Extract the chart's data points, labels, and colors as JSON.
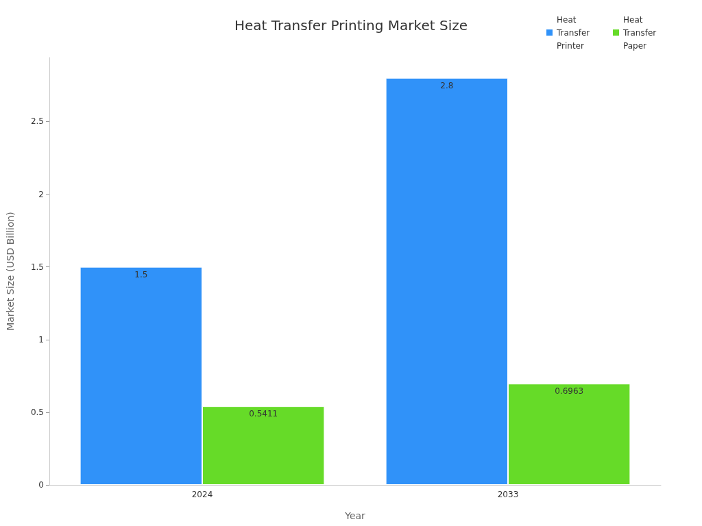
{
  "chart_data": {
    "type": "bar",
    "title": "Heat Transfer Printing Market Size",
    "xlabel": "Year",
    "ylabel": "Market Size (USD Billion)",
    "categories": [
      "2024",
      "2033"
    ],
    "series": [
      {
        "name": "Heat Transfer Printer",
        "color": "#3092f9",
        "values": [
          1.5,
          2.8
        ]
      },
      {
        "name": "Heat Transfer Paper",
        "color": "#66db28",
        "values": [
          0.5411,
          0.6963
        ]
      }
    ],
    "ylim": [
      0,
      2.94
    ],
    "yticks": [
      0,
      0.5,
      1,
      1.5,
      2,
      2.5
    ],
    "grid": false,
    "legend": "top right",
    "data_labels": true
  }
}
